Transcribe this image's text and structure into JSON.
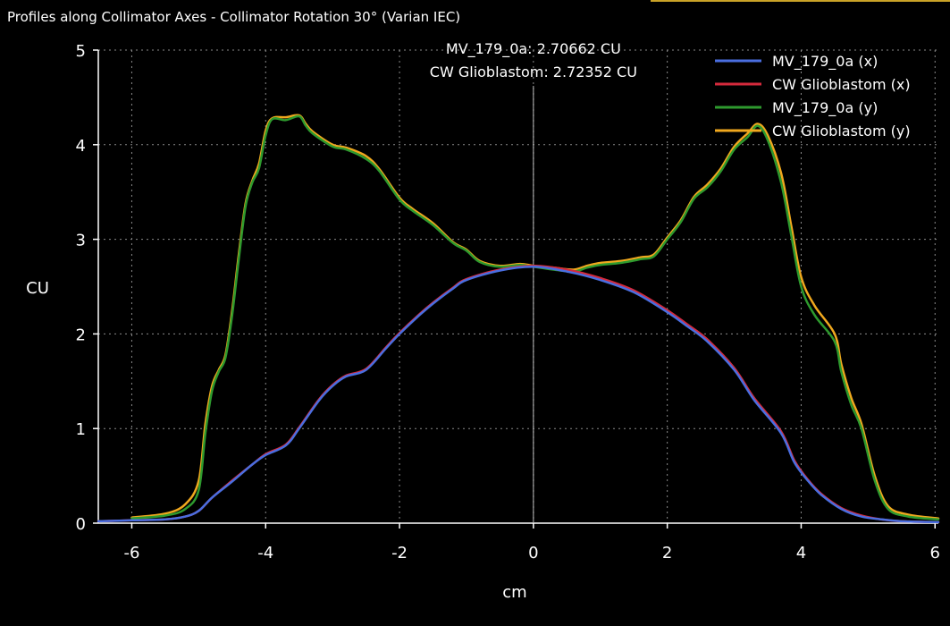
{
  "window": {
    "title": "Profiles along Collimator Axes - Collimator Rotation 30° (Varian IEC)"
  },
  "colors": {
    "background": "#000000",
    "grid": "#8a8a8a",
    "axis": "#ffffff",
    "cursor": "#bfbfbf",
    "title_accent": "#c9a227"
  },
  "cursor_readout": {
    "line1": "MV_179_0a: 2.70662 CU",
    "line2": "CW Glioblastom: 2.72352 CU",
    "x": 0
  },
  "chart_data": {
    "type": "line",
    "title": "",
    "xlabel": "cm",
    "ylabel": "CU",
    "xlim": [
      -6.5,
      6.05
    ],
    "ylim": [
      0,
      5
    ],
    "xticks": [
      -6,
      -4,
      -2,
      0,
      2,
      4,
      6
    ],
    "yticks": [
      0,
      1,
      2,
      3,
      4,
      5
    ],
    "grid": true,
    "legend_position": "top-right",
    "series": [
      {
        "name": "MV_179_0a (x)",
        "color": "#4a6ee0",
        "x": [
          -6.5,
          -6.0,
          -5.5,
          -5.2,
          -5.0,
          -4.8,
          -4.5,
          -4.2,
          -4.0,
          -3.7,
          -3.5,
          -3.2,
          -3.0,
          -2.8,
          -2.5,
          -2.2,
          -2.0,
          -1.7,
          -1.5,
          -1.2,
          -1.0,
          -0.5,
          0.0,
          0.5,
          1.0,
          1.5,
          2.0,
          2.3,
          2.6,
          3.0,
          3.3,
          3.7,
          3.9,
          4.1,
          4.3,
          4.6,
          4.9,
          5.2,
          5.5,
          6.05
        ],
        "y": [
          0.02,
          0.03,
          0.04,
          0.07,
          0.13,
          0.27,
          0.44,
          0.62,
          0.72,
          0.82,
          1.0,
          1.3,
          1.45,
          1.55,
          1.62,
          1.85,
          2.0,
          2.2,
          2.32,
          2.48,
          2.57,
          2.67,
          2.71,
          2.66,
          2.57,
          2.44,
          2.23,
          2.08,
          1.92,
          1.62,
          1.3,
          0.95,
          0.64,
          0.45,
          0.3,
          0.15,
          0.07,
          0.04,
          0.02,
          0.01
        ]
      },
      {
        "name": "CW Glioblastom (x)",
        "color": "#d42a3c",
        "x": [
          -6.5,
          -6.0,
          -5.5,
          -5.2,
          -5.0,
          -4.8,
          -4.5,
          -4.2,
          -4.0,
          -3.7,
          -3.5,
          -3.2,
          -3.0,
          -2.8,
          -2.5,
          -2.2,
          -2.0,
          -1.7,
          -1.5,
          -1.2,
          -1.0,
          -0.5,
          0.0,
          0.5,
          1.0,
          1.5,
          2.0,
          2.3,
          2.6,
          3.0,
          3.3,
          3.7,
          3.9,
          4.1,
          4.3,
          4.6,
          4.9,
          5.2,
          5.5,
          6.05
        ],
        "y": [
          0.02,
          0.03,
          0.04,
          0.07,
          0.13,
          0.27,
          0.45,
          0.62,
          0.73,
          0.83,
          1.01,
          1.31,
          1.46,
          1.56,
          1.63,
          1.86,
          2.01,
          2.21,
          2.33,
          2.49,
          2.58,
          2.68,
          2.72,
          2.68,
          2.59,
          2.46,
          2.25,
          2.1,
          1.94,
          1.64,
          1.32,
          0.97,
          0.66,
          0.46,
          0.31,
          0.16,
          0.08,
          0.04,
          0.02,
          0.01
        ]
      },
      {
        "name": "MV_179_0a (y)",
        "color": "#2e9a2e",
        "x": [
          -6.0,
          -5.5,
          -5.2,
          -5.0,
          -4.9,
          -4.8,
          -4.7,
          -4.6,
          -4.5,
          -4.4,
          -4.3,
          -4.2,
          -4.1,
          -4.0,
          -3.9,
          -3.7,
          -3.5,
          -3.4,
          -3.3,
          -3.0,
          -2.8,
          -2.5,
          -2.3,
          -2.0,
          -1.8,
          -1.5,
          -1.2,
          -1.0,
          -0.8,
          -0.5,
          -0.2,
          0.0,
          0.3,
          0.6,
          0.8,
          1.0,
          1.3,
          1.6,
          1.8,
          2.0,
          2.2,
          2.4,
          2.6,
          2.8,
          3.0,
          3.2,
          3.35,
          3.5,
          3.7,
          3.85,
          4.0,
          4.2,
          4.5,
          4.6,
          4.75,
          4.9,
          5.1,
          5.3,
          5.6,
          6.05
        ],
        "y": [
          0.05,
          0.08,
          0.15,
          0.35,
          0.95,
          1.4,
          1.6,
          1.75,
          2.2,
          2.8,
          3.35,
          3.6,
          3.75,
          4.1,
          4.27,
          4.26,
          4.3,
          4.2,
          4.12,
          3.98,
          3.95,
          3.85,
          3.72,
          3.42,
          3.3,
          3.15,
          2.96,
          2.88,
          2.76,
          2.71,
          2.73,
          2.71,
          2.68,
          2.66,
          2.7,
          2.73,
          2.75,
          2.79,
          2.82,
          3.0,
          3.18,
          3.43,
          3.55,
          3.72,
          3.95,
          4.08,
          4.2,
          4.05,
          3.6,
          3.05,
          2.5,
          2.2,
          1.92,
          1.6,
          1.25,
          1.0,
          0.45,
          0.15,
          0.07,
          0.04
        ]
      },
      {
        "name": "CW Glioblastom (y)",
        "color": "#f0a81e",
        "x": [
          -6.0,
          -5.5,
          -5.2,
          -5.0,
          -4.9,
          -4.8,
          -4.7,
          -4.6,
          -4.5,
          -4.4,
          -4.3,
          -4.2,
          -4.1,
          -4.0,
          -3.9,
          -3.7,
          -3.5,
          -3.4,
          -3.3,
          -3.0,
          -2.8,
          -2.5,
          -2.3,
          -2.0,
          -1.8,
          -1.5,
          -1.2,
          -1.0,
          -0.8,
          -0.5,
          -0.2,
          0.0,
          0.3,
          0.6,
          0.8,
          1.0,
          1.3,
          1.6,
          1.8,
          2.0,
          2.2,
          2.4,
          2.6,
          2.8,
          3.0,
          3.2,
          3.35,
          3.5,
          3.7,
          3.85,
          4.0,
          4.2,
          4.5,
          4.6,
          4.75,
          4.9,
          5.1,
          5.3,
          5.6,
          6.05
        ],
        "y": [
          0.06,
          0.1,
          0.2,
          0.45,
          1.05,
          1.45,
          1.62,
          1.78,
          2.25,
          2.85,
          3.38,
          3.62,
          3.8,
          4.15,
          4.28,
          4.29,
          4.31,
          4.22,
          4.14,
          4.0,
          3.97,
          3.88,
          3.74,
          3.44,
          3.32,
          3.17,
          2.97,
          2.89,
          2.77,
          2.72,
          2.74,
          2.72,
          2.7,
          2.68,
          2.72,
          2.75,
          2.77,
          2.81,
          2.84,
          3.02,
          3.2,
          3.45,
          3.58,
          3.75,
          3.98,
          4.12,
          4.22,
          4.1,
          3.7,
          3.15,
          2.6,
          2.3,
          2.0,
          1.68,
          1.32,
          1.05,
          0.5,
          0.18,
          0.09,
          0.05
        ]
      }
    ]
  }
}
